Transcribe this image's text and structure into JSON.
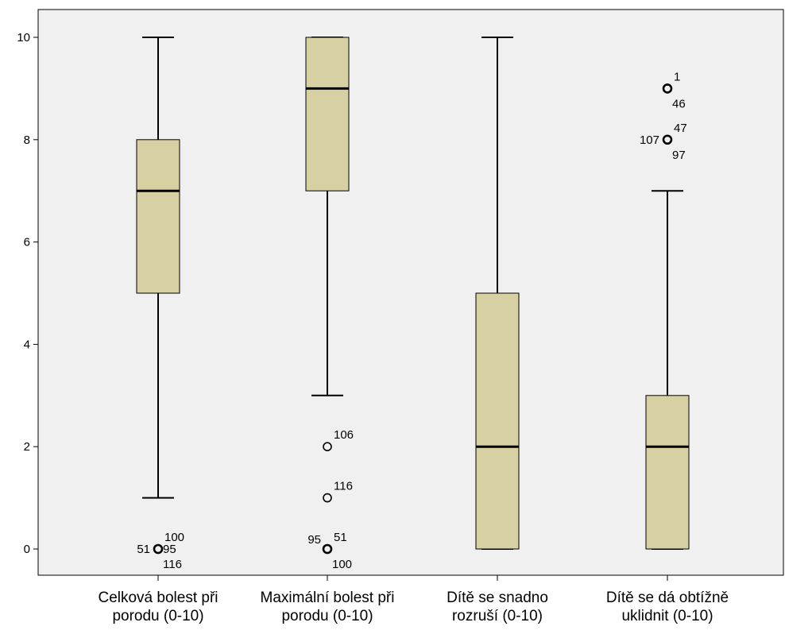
{
  "chart_data": {
    "type": "boxplot",
    "ylim": [
      -0.5,
      10.5
    ],
    "yticks": [
      0,
      2,
      4,
      6,
      8,
      10
    ],
    "grid": false,
    "colors": {
      "box_fill": "#d6d0a2",
      "plot_background": "#f0f0f0",
      "stroke": "#000000"
    },
    "categories": [
      {
        "label_lines": [
          "Celková bolest při",
          "porodu (0-10)"
        ],
        "whisker_low": 1,
        "q1": 5,
        "median": 7,
        "q3": 8,
        "whisker_high": 10,
        "outliers": [
          {
            "value": 0,
            "labels": [
              {
                "text": "51",
                "pos": "left"
              },
              {
                "text": "100",
                "pos": "upper-right"
              },
              {
                "text": "95",
                "pos": "right"
              },
              {
                "text": "116",
                "pos": "lower-right"
              }
            ]
          }
        ]
      },
      {
        "label_lines": [
          "Maximální bolest při",
          "porodu (0-10)"
        ],
        "whisker_low": 3,
        "q1": 7,
        "median": 9,
        "q3": 10,
        "whisker_high": 10,
        "outliers": [
          {
            "value": 2,
            "labels": [
              {
                "text": "106",
                "pos": "upper-right"
              }
            ]
          },
          {
            "value": 1,
            "labels": [
              {
                "text": "116",
                "pos": "upper-right"
              }
            ]
          },
          {
            "value": 0,
            "labels": [
              {
                "text": "95",
                "pos": "upper-left"
              },
              {
                "text": "51",
                "pos": "upper-right"
              },
              {
                "text": "100",
                "pos": "lower-right"
              }
            ]
          }
        ]
      },
      {
        "label_lines": [
          "Dítě se snadno",
          "rozruší (0-10)"
        ],
        "whisker_low": 0,
        "q1": 0,
        "median": 2,
        "q3": 5,
        "whisker_high": 10,
        "outliers": []
      },
      {
        "label_lines": [
          "Dítě se dá obtížně",
          "uklidnit (0-10)"
        ],
        "whisker_low": 0,
        "q1": 0,
        "median": 2,
        "q3": 3,
        "whisker_high": 7,
        "outliers": [
          {
            "value": 9,
            "labels": [
              {
                "text": "1",
                "pos": "upper-right"
              },
              {
                "text": "46",
                "pos": "lower-right"
              }
            ]
          },
          {
            "value": 8,
            "labels": [
              {
                "text": "107",
                "pos": "left"
              },
              {
                "text": "47",
                "pos": "upper-right"
              },
              {
                "text": "97",
                "pos": "lower-right"
              }
            ]
          }
        ]
      }
    ]
  }
}
